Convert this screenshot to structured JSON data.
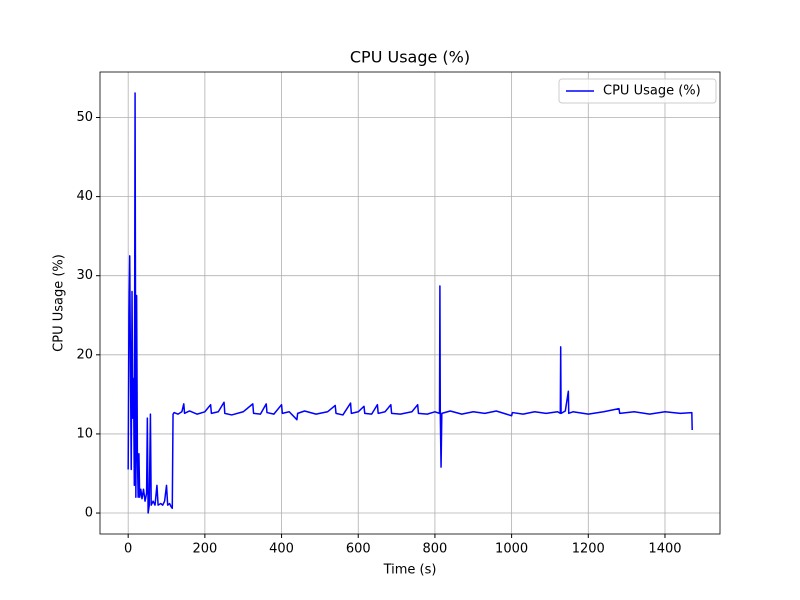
{
  "chart_data": {
    "type": "line",
    "title": "CPU Usage (%)",
    "xlabel": "Time (s)",
    "ylabel": "CPU Usage (%)",
    "x": [
      0,
      2,
      4,
      6,
      8,
      10,
      12,
      14,
      16,
      18,
      20,
      22,
      24,
      26,
      28,
      30,
      33,
      36,
      40,
      44,
      48,
      50,
      52,
      55,
      58,
      60,
      65,
      70,
      75,
      78,
      85,
      90,
      95,
      100,
      103,
      108,
      112,
      115,
      117,
      120,
      130,
      140,
      145,
      147,
      160,
      180,
      200,
      215,
      217,
      235,
      250,
      252,
      270,
      300,
      325,
      327,
      345,
      360,
      362,
      380,
      400,
      402,
      420,
      440,
      442,
      460,
      490,
      520,
      540,
      542,
      560,
      580,
      582,
      600,
      615,
      617,
      635,
      650,
      652,
      670,
      685,
      687,
      710,
      740,
      755,
      757,
      780,
      800,
      812,
      813,
      814,
      816,
      818,
      840,
      870,
      900,
      930,
      960,
      1000,
      1002,
      1030,
      1060,
      1090,
      1120,
      1127,
      1128,
      1129,
      1140,
      1148,
      1149,
      1160,
      1200,
      1240,
      1280,
      1282,
      1320,
      1360,
      1400,
      1440,
      1470,
      1471
    ],
    "series": [
      {
        "name": "CPU Usage (%)",
        "color": "#0000ff",
        "values": [
          5.5,
          25,
          32.5,
          18,
          5.5,
          28,
          12,
          17,
          3.5,
          53.1,
          2,
          27.5,
          7.5,
          2,
          7.5,
          2,
          3,
          1.8,
          3,
          1.5,
          2.5,
          12,
          0,
          1,
          12.5,
          1,
          1.5,
          1,
          3.5,
          1,
          1.2,
          1,
          1.5,
          3.5,
          1,
          1.2,
          0.8,
          0.6,
          12.5,
          12.7,
          12.5,
          12.8,
          13.8,
          12.6,
          12.9,
          12.5,
          12.8,
          13.7,
          12.6,
          12.8,
          14,
          12.6,
          12.4,
          12.8,
          13.8,
          12.6,
          12.5,
          13.8,
          12.7,
          12.5,
          13.7,
          12.6,
          12.8,
          11.8,
          12.6,
          12.9,
          12.5,
          12.8,
          13.6,
          12.6,
          12.4,
          13.9,
          12.6,
          12.8,
          13.5,
          12.6,
          12.5,
          13.7,
          12.6,
          12.8,
          13.7,
          12.6,
          12.5,
          12.8,
          13.7,
          12.6,
          12.5,
          12.8,
          12.6,
          28.7,
          12.6,
          5.8,
          12.6,
          12.9,
          12.5,
          12.8,
          12.6,
          12.9,
          12.3,
          12.7,
          12.5,
          12.8,
          12.6,
          12.8,
          12.6,
          21,
          12.6,
          12.9,
          15.4,
          12.6,
          12.8,
          12.5,
          12.8,
          13.2,
          12.6,
          12.8,
          12.5,
          12.8,
          12.6,
          12.7,
          10.5
        ]
      }
    ],
    "xlim": [
      -73.5,
      1543.5
    ],
    "ylim": [
      -2.65,
      55.75
    ],
    "xticks": [
      0,
      200,
      400,
      600,
      800,
      1000,
      1200,
      1400
    ],
    "yticks": [
      0,
      10,
      20,
      30,
      40,
      50
    ],
    "grid": true,
    "legend": "upper right"
  }
}
